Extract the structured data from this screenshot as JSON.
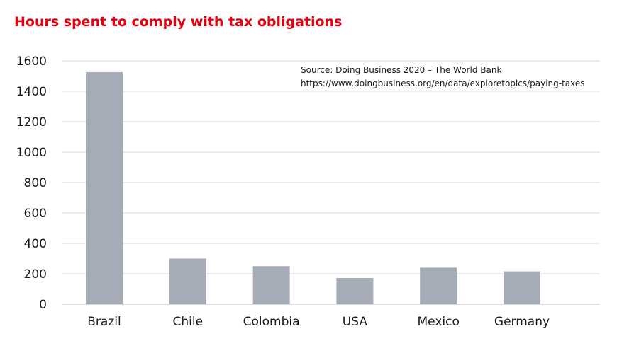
{
  "chart_data": {
    "type": "bar",
    "title": "Hours spent to comply with tax obligations",
    "annotations": [
      "Source: Doing Business 2020 – The World Bank",
      "https://www.doingbusiness.org/en/data/exploretopics/paying-taxes"
    ],
    "categories": [
      "Brazil",
      "Chile",
      "Colombia",
      "USA",
      "Mexico",
      "Germany"
    ],
    "values": [
      1526,
      300,
      250,
      172,
      240,
      216
    ],
    "xlabel": "",
    "ylabel": "",
    "ylim": [
      0,
      1600
    ],
    "yticks": [
      0,
      200,
      400,
      600,
      800,
      1000,
      1200,
      1400,
      1600
    ],
    "grid": true,
    "legend": "none",
    "bar_color": "#a6abb8",
    "title_color": "#e3000f",
    "grid_color": "#d9d9d9"
  }
}
